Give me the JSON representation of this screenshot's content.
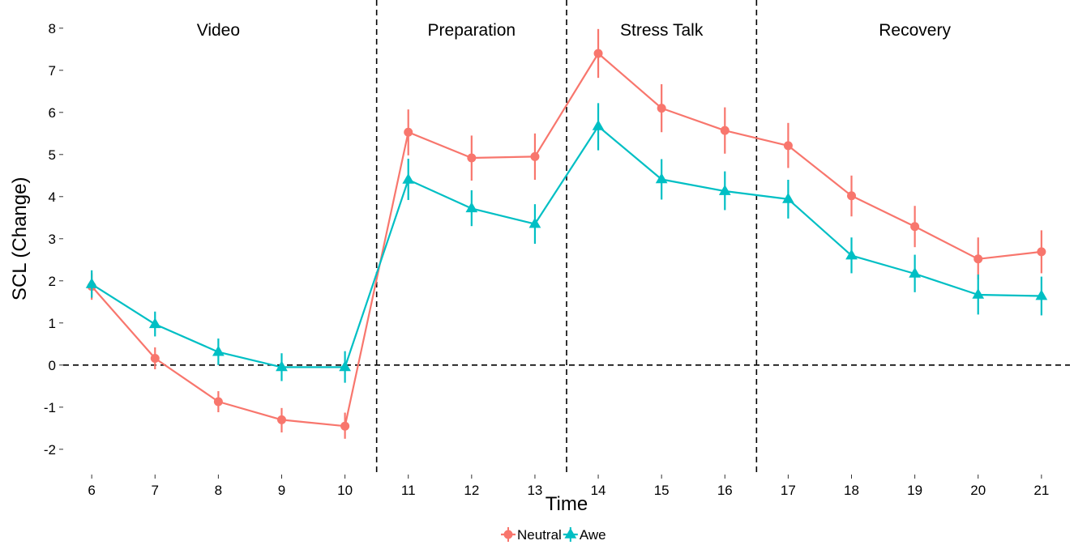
{
  "chart_data": {
    "type": "line",
    "xlabel": "Time",
    "ylabel": "SCL (Change)",
    "x": [
      6,
      7,
      8,
      9,
      10,
      11,
      12,
      13,
      14,
      15,
      16,
      17,
      18,
      19,
      20,
      21
    ],
    "xlim": [
      5.55,
      21.45
    ],
    "ylim": [
      -2.6,
      8.4
    ],
    "yticks": [
      -2,
      -1,
      0,
      1,
      2,
      3,
      4,
      5,
      6,
      7,
      8
    ],
    "grid": false,
    "legend_position": "bottom",
    "reference_lines": {
      "horizontal": [
        0
      ],
      "vertical": [
        10.5,
        13.5,
        16.5
      ]
    },
    "phases": [
      {
        "label": "Video",
        "center": 8
      },
      {
        "label": "Preparation",
        "center": 12
      },
      {
        "label": "Stress Talk",
        "center": 15
      },
      {
        "label": "Recovery",
        "center": 19
      }
    ],
    "series": [
      {
        "name": "Neutral",
        "color": "#F8766D",
        "marker": "circle",
        "values": [
          1.87,
          0.16,
          -0.87,
          -1.3,
          -1.45,
          5.53,
          4.92,
          4.95,
          7.4,
          6.1,
          5.57,
          5.21,
          4.02,
          3.29,
          2.52,
          2.69
        ],
        "err_low": [
          1.55,
          -0.1,
          -1.12,
          -1.6,
          -1.75,
          4.98,
          4.38,
          4.4,
          6.82,
          5.53,
          5.02,
          4.68,
          3.53,
          2.8,
          2.03,
          2.18
        ],
        "err_high": [
          2.18,
          0.42,
          -0.62,
          -1.02,
          -1.13,
          6.07,
          5.45,
          5.5,
          7.98,
          6.67,
          6.12,
          5.75,
          4.5,
          3.78,
          3.03,
          3.2
        ]
      },
      {
        "name": "Awe",
        "color": "#00BFC4",
        "marker": "triangle",
        "values": [
          1.92,
          0.97,
          0.31,
          -0.05,
          -0.05,
          4.4,
          3.72,
          3.35,
          5.67,
          4.41,
          4.13,
          3.94,
          2.6,
          2.17,
          1.67,
          1.64
        ],
        "err_low": [
          1.6,
          0.68,
          0.0,
          -0.38,
          -0.42,
          3.92,
          3.3,
          2.88,
          5.1,
          3.93,
          3.68,
          3.48,
          2.18,
          1.73,
          1.2,
          1.18
        ],
        "err_high": [
          2.25,
          1.27,
          0.63,
          0.28,
          0.33,
          4.9,
          4.15,
          3.82,
          6.22,
          4.89,
          4.6,
          4.4,
          3.03,
          2.62,
          2.15,
          2.1
        ]
      }
    ]
  }
}
